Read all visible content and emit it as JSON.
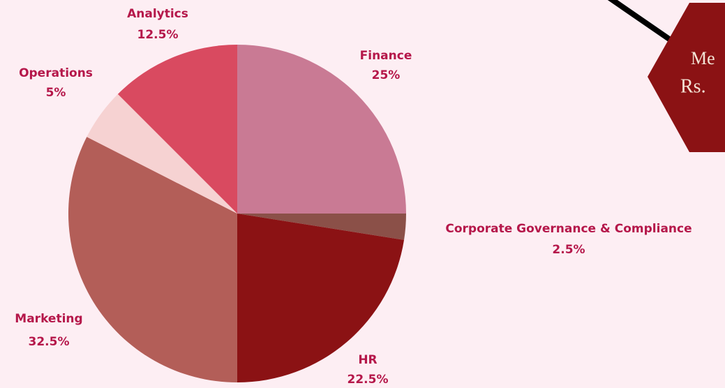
{
  "chart_data": {
    "type": "pie",
    "categories": [
      "Finance",
      "Corporate Governance & Compliance",
      "HR",
      "Marketing",
      "Operations",
      "Analytics"
    ],
    "values": [
      25,
      2.5,
      22.5,
      32.5,
      5,
      12.5
    ],
    "value_labels": [
      "25%",
      "2.5%",
      "22.5%",
      "32.5%",
      "5%",
      "12.5%"
    ],
    "colors": [
      "#c97a94",
      "#8b5048",
      "#8b1214",
      "#b35e58",
      "#f6d2d2",
      "#d94a60"
    ]
  },
  "hexagon": {
    "title": "Me",
    "subtitle": "Rs."
  }
}
